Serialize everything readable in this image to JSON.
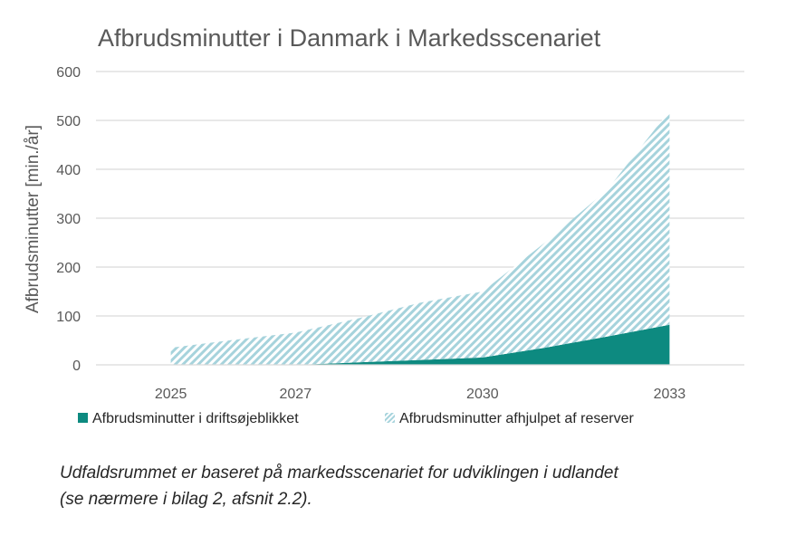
{
  "chart_data": {
    "type": "area",
    "title": "Afbrudsminutter i Danmark i Markedsscenariet",
    "xlabel": "",
    "ylabel": "Afbrudsminutter [min./år]",
    "x": [
      2025,
      2026,
      2027,
      2028,
      2029,
      2030,
      2031,
      2032,
      2033
    ],
    "x_ticks": [
      "2025",
      "2027",
      "2030",
      "2033"
    ],
    "xlim": [
      2023.8,
      2034.2
    ],
    "ylim": [
      0,
      600
    ],
    "y_ticks": [
      "0",
      "100",
      "200",
      "300",
      "400",
      "500",
      "600"
    ],
    "grid": true,
    "stacked": true,
    "legend_position": "bottom",
    "series": [
      {
        "name": "Afbrudsminutter i driftsøjeblikket",
        "color": "#0d8a80",
        "fill": "solid",
        "values": [
          0,
          0,
          0,
          5,
          10,
          15,
          35,
          58,
          82
        ]
      },
      {
        "name": "Afbrudsminutter afhjulpet af reserver",
        "color": "#a6d3dc",
        "fill": "hatched",
        "values": [
          35,
          51,
          66,
          90,
          117,
          135,
          215,
          300,
          438
        ]
      }
    ]
  },
  "caption": {
    "line1": "Udfaldsrummet er baseret på markedsscenariet for udviklingen i udlandet",
    "line2": "(se nærmere i bilag 2, afsnit 2.2)."
  }
}
